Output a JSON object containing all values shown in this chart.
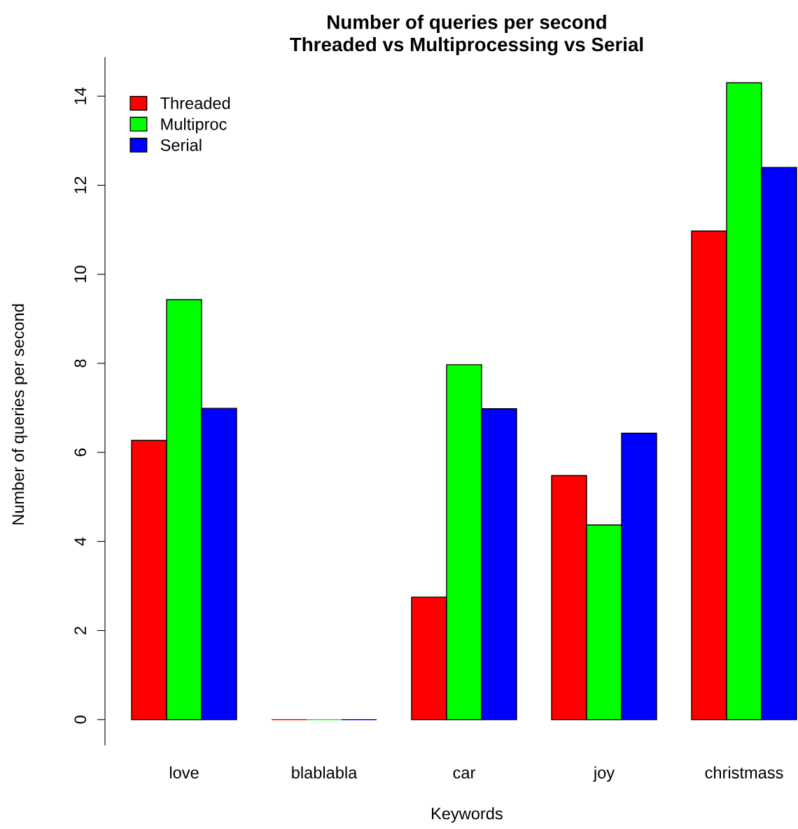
{
  "chart_data": {
    "type": "bar",
    "title": "Number of queries per second\nThreaded vs Multiprocessing vs Serial",
    "xlabel": "Keywords",
    "ylabel": "Number of queries per second",
    "categories": [
      "love",
      "blablabla",
      "car",
      "joy",
      "christmass"
    ],
    "series": [
      {
        "name": "Threaded",
        "color": "#ff0000",
        "values": [
          6.27,
          0,
          2.75,
          5.48,
          10.97
        ]
      },
      {
        "name": "Multiproc",
        "color": "#00ff00",
        "values": [
          9.43,
          0,
          7.97,
          4.37,
          14.3
        ]
      },
      {
        "name": "Serial",
        "color": "#0000ff",
        "values": [
          6.99,
          0,
          6.98,
          6.43,
          12.4
        ]
      }
    ],
    "ylim": [
      -0.57,
      14.87
    ],
    "yticks": [
      0,
      2,
      4,
      6,
      8,
      10,
      12,
      14
    ],
    "grid": false,
    "legend": "top left"
  }
}
